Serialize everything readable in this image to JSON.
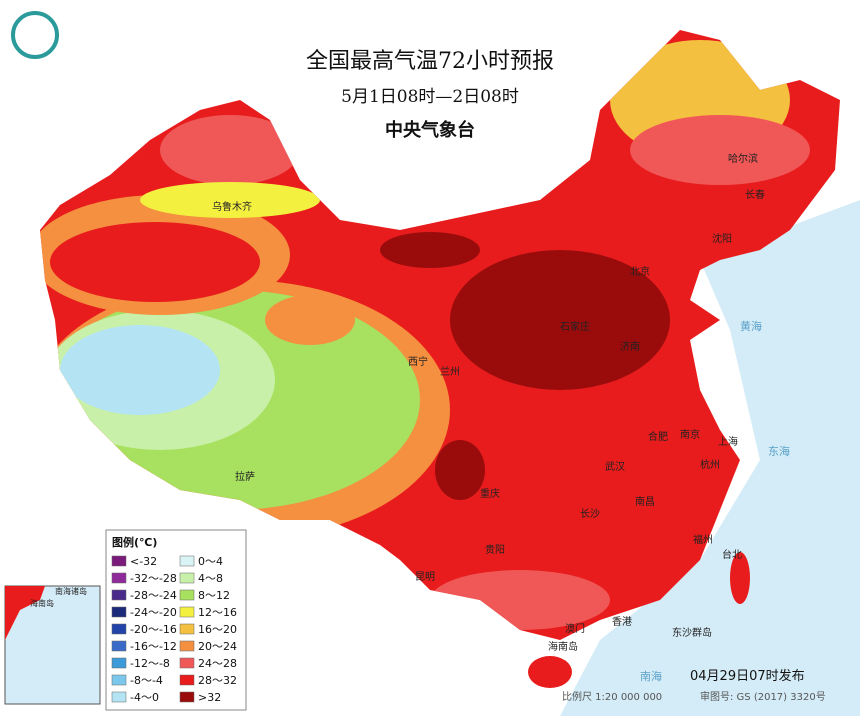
{
  "header": {
    "title": "全国最高气温72小时预报",
    "period": "5月1日08时—2日08时",
    "issuer": "中央气象台"
  },
  "legend": {
    "title": "图例(℃)",
    "items": [
      {
        "label": "<-32",
        "color": "#7a1a7a"
      },
      {
        "label": "-32～-28",
        "color": "#8e2a9a"
      },
      {
        "label": "-28～-24",
        "color": "#4a2a8a"
      },
      {
        "label": "-24～-20",
        "color": "#1c2a7a"
      },
      {
        "label": "-20～-16",
        "color": "#2244a8"
      },
      {
        "label": "-16～-12",
        "color": "#3a6ac8"
      },
      {
        "label": "-12～-8",
        "color": "#3c9ad8"
      },
      {
        "label": "-8～-4",
        "color": "#7cc8ec"
      },
      {
        "label": "-4～0",
        "color": "#b4e4f4"
      },
      {
        "label": "0～4",
        "color": "#d8f4f4"
      },
      {
        "label": "4～8",
        "color": "#c8f0a8"
      },
      {
        "label": "8～12",
        "color": "#a8e060"
      },
      {
        "label": "12～16",
        "color": "#f4f040"
      },
      {
        "label": "16～20",
        "color": "#f4c040"
      },
      {
        "label": "20～24",
        "color": "#f49040"
      },
      {
        "label": "24～28",
        "color": "#f05858"
      },
      {
        "label": "28～32",
        "color": "#e81c1c"
      },
      {
        "label": ">32",
        "color": "#9a0c0c"
      }
    ]
  },
  "cities": [
    "乌鲁木齐",
    "哈尔滨",
    "长春",
    "沈阳",
    "北京",
    "石家庄",
    "济南",
    "西宁",
    "兰州",
    "合肥",
    "南京",
    "上海",
    "杭州",
    "武汉",
    "南昌",
    "长沙",
    "重庆",
    "贵阳",
    "昆明",
    "拉萨",
    "福州",
    "台北",
    "澳门",
    "香港",
    "海南岛",
    "东沙群岛"
  ],
  "seas": [
    "黄海",
    "东海",
    "南海"
  ],
  "inset": {
    "title": "南海诸岛",
    "island": "海南岛"
  },
  "footer": {
    "release": "04月29日07时发布",
    "scale": "比例尺 1:20 000 000",
    "approval": "审图号: GS (2017) 3320号"
  }
}
